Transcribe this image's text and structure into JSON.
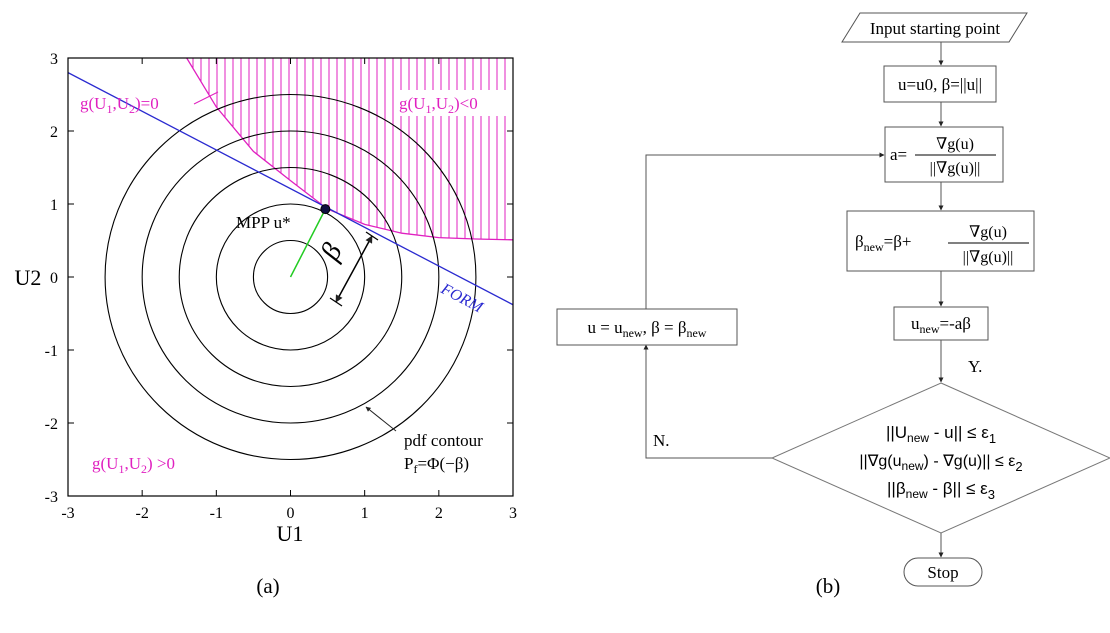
{
  "panel_a": {
    "caption": "(a)",
    "chart_data": {
      "type": "line",
      "xlabel": "U1",
      "ylabel": "U2",
      "xlim": [
        -3,
        3
      ],
      "ylim": [
        -3,
        3
      ],
      "x_ticks": [
        "-3",
        "-2",
        "-1",
        "0",
        "1",
        "2",
        "3"
      ],
      "y_ticks": [
        "-3",
        "-2",
        "-1",
        "0",
        "1",
        "2",
        "3"
      ],
      "grid": false,
      "pdf_contour_radii": [
        0.5,
        1.0,
        1.5,
        2.0,
        2.5
      ],
      "limit_state_curve": [
        [
          -1.4,
          3.0
        ],
        [
          -1.0,
          2.33
        ],
        [
          -0.5,
          1.72
        ],
        [
          0.0,
          1.32
        ],
        [
          0.5,
          0.93
        ],
        [
          1.0,
          0.72
        ],
        [
          1.5,
          0.6
        ],
        [
          2.0,
          0.54
        ],
        [
          2.5,
          0.52
        ],
        [
          3.0,
          0.51
        ]
      ],
      "form_line": [
        [
          -3.0,
          2.8
        ],
        [
          3.0,
          -0.38
        ]
      ],
      "mpp": [
        0.47,
        0.93
      ],
      "colors": {
        "failure_region": "#e020c0",
        "form_line": "#2a2ad0",
        "mpp_vector": "#22cc22",
        "contours": "#000000"
      }
    },
    "labels": {
      "g_zero": "g(U",
      "g_neg": "g(U",
      "g_pos": "g(U",
      "mpp": "MPP u*",
      "beta": "β",
      "form": "FORM",
      "pdf_contour": "pdf contour",
      "pf": "P",
      "pf_expr": "=Φ(−β)",
      "g_zero_tail": ")=0",
      "g_neg_tail": ")<0",
      "g_pos_tail": ") >0",
      "sub1": "1",
      "sub2": "2",
      "subf": "f",
      "comma_u": ",U"
    }
  },
  "panel_b": {
    "caption": "(b)",
    "nodes": {
      "input": "Input starting point",
      "init": "u=u0, β=||u||",
      "a_lhs": "a=",
      "a_num": "∇g(u)",
      "a_den": "||∇g(u)||",
      "beta_lhs": "β",
      "beta_sub": "new",
      "beta_mid": "=β+",
      "beta_num": "∇g(u)",
      "beta_den": "||∇g(u)||",
      "unew_u": "u",
      "unew_sub": "new",
      "unew_rhs": "=-aβ",
      "update_a": "u = u",
      "update_sub1": "new",
      "update_b": ", β = β",
      "update_sub2": "new",
      "cond1_a": "||U",
      "cond1_sub": "new",
      "cond1_b": " - u|| ≤ ε",
      "cond1_eps": "1",
      "cond2_a": "||∇g(u",
      "cond2_sub": "new",
      "cond2_b": ") - ∇g(u)|| ≤ ε",
      "cond2_eps": "2",
      "cond3_a": "||β",
      "cond3_sub": "new",
      "cond3_b": " - β|| ≤ ε",
      "cond3_eps": "3",
      "yes": "Y.",
      "no": "N.",
      "stop": "Stop"
    }
  }
}
